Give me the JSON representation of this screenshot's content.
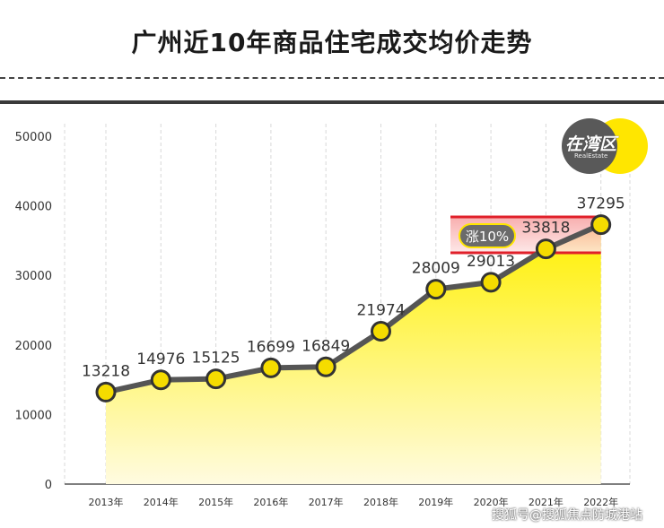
{
  "header": {
    "title": "广州近10年商品住宅成交均价走势"
  },
  "logo": {
    "text": "在湾区",
    "sub": "RealEstate"
  },
  "annotation": {
    "label": "涨10%"
  },
  "watermark": "搜狐号@搜狐焦点防城港站",
  "colors": {
    "area": "#fff27a",
    "line": "#555555",
    "marker_fill": "#f5dc00",
    "marker_stroke": "#333333",
    "band": "#e0202a"
  },
  "chart_data": {
    "type": "area",
    "title": "广州近10年商品住宅成交均价走势",
    "categories": [
      "2013年",
      "2014年",
      "2015年",
      "2016年",
      "2017年",
      "2018年",
      "2019年",
      "2020年",
      "2021年",
      "2022年"
    ],
    "values": [
      13218,
      14976,
      15125,
      16699,
      16849,
      21974,
      28009,
      29013,
      33818,
      37295
    ],
    "yticks": [
      "0",
      "10000",
      "20000",
      "30000",
      "40000",
      "50000"
    ],
    "ylim": [
      0,
      50000
    ],
    "grid": "vertical-dashed",
    "xlabel": "",
    "ylabel": ""
  }
}
